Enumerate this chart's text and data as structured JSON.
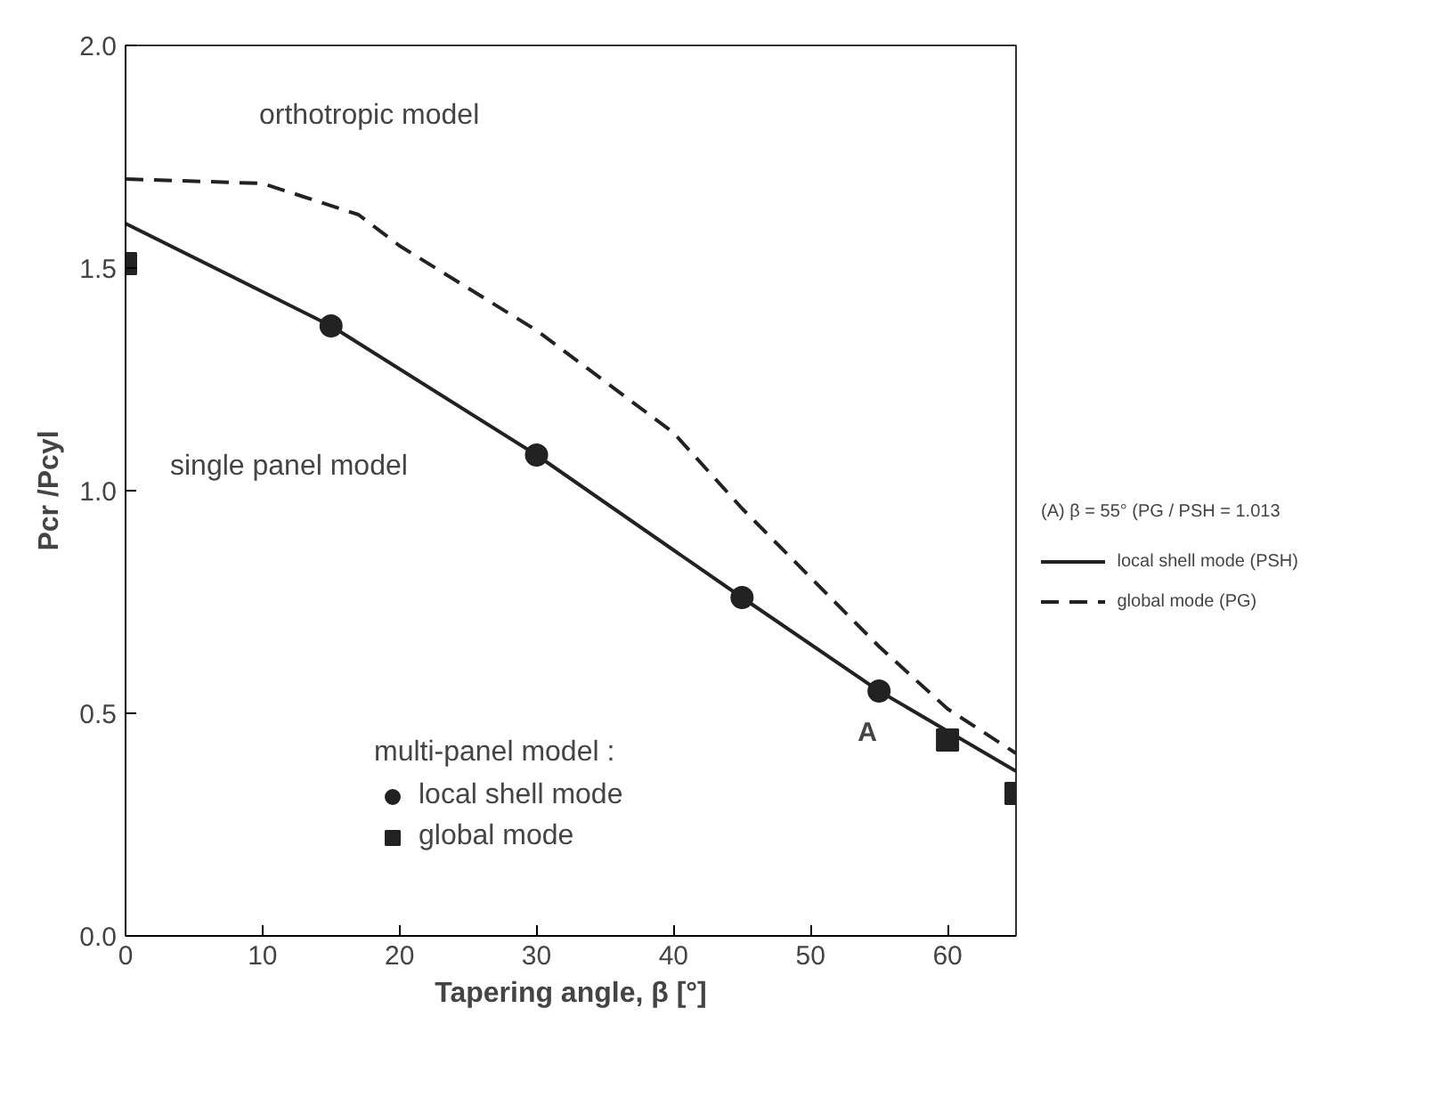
{
  "chart_data": {
    "type": "line",
    "xlabel": "Tapering angle, β [°]",
    "ylabel": "Pcr /Pcyl",
    "xlim": [
      0,
      65
    ],
    "ylim": [
      0,
      2.0
    ],
    "xticks": [
      0,
      10,
      20,
      30,
      40,
      50,
      60
    ],
    "yticks": [
      {
        "value": 0,
        "label": "0.0"
      },
      0.5,
      {
        "value": 1,
        "label": "1.0"
      },
      1.5,
      {
        "value": 2,
        "label": "2.0"
      }
    ],
    "grid": false,
    "legend": "right",
    "legend_title": "multi-panel model :",
    "series": [
      {
        "name": "local shell mode (PSH)",
        "line_style": "solid",
        "marker": "none",
        "color": "#222222",
        "x": [
          0,
          15,
          30,
          45,
          55,
          65
        ],
        "values": [
          1.6,
          1.37,
          1.08,
          0.76,
          0.55,
          0.37
        ]
      },
      {
        "name": "global mode (PG)",
        "line_style": "dashed",
        "marker": "none",
        "color": "#222222",
        "x": [
          0,
          10,
          13,
          17,
          20,
          30,
          40,
          45,
          55,
          60,
          65
        ],
        "values": [
          1.7,
          1.69,
          1.66,
          1.62,
          1.55,
          1.36,
          1.13,
          0.96,
          0.65,
          0.51,
          0.41
        ]
      },
      {
        "name": "local shell mode",
        "type": "scatter",
        "marker": "circle",
        "color": "#222222",
        "x": [
          15,
          30,
          45,
          55
        ],
        "values": [
          1.37,
          1.08,
          0.76,
          0.55
        ]
      },
      {
        "name": "global mode",
        "type": "scatter",
        "marker": "square",
        "color": "#222222",
        "x": [
          0,
          60,
          65
        ],
        "values": [
          1.51,
          0.44,
          0.32
        ]
      }
    ],
    "annotations": [
      "orthotropic model",
      "single panel model",
      {
        "text": "A",
        "x": 55,
        "y": 0.55
      },
      "(A) β = 55° (PG / PSH = 1.013"
    ]
  }
}
